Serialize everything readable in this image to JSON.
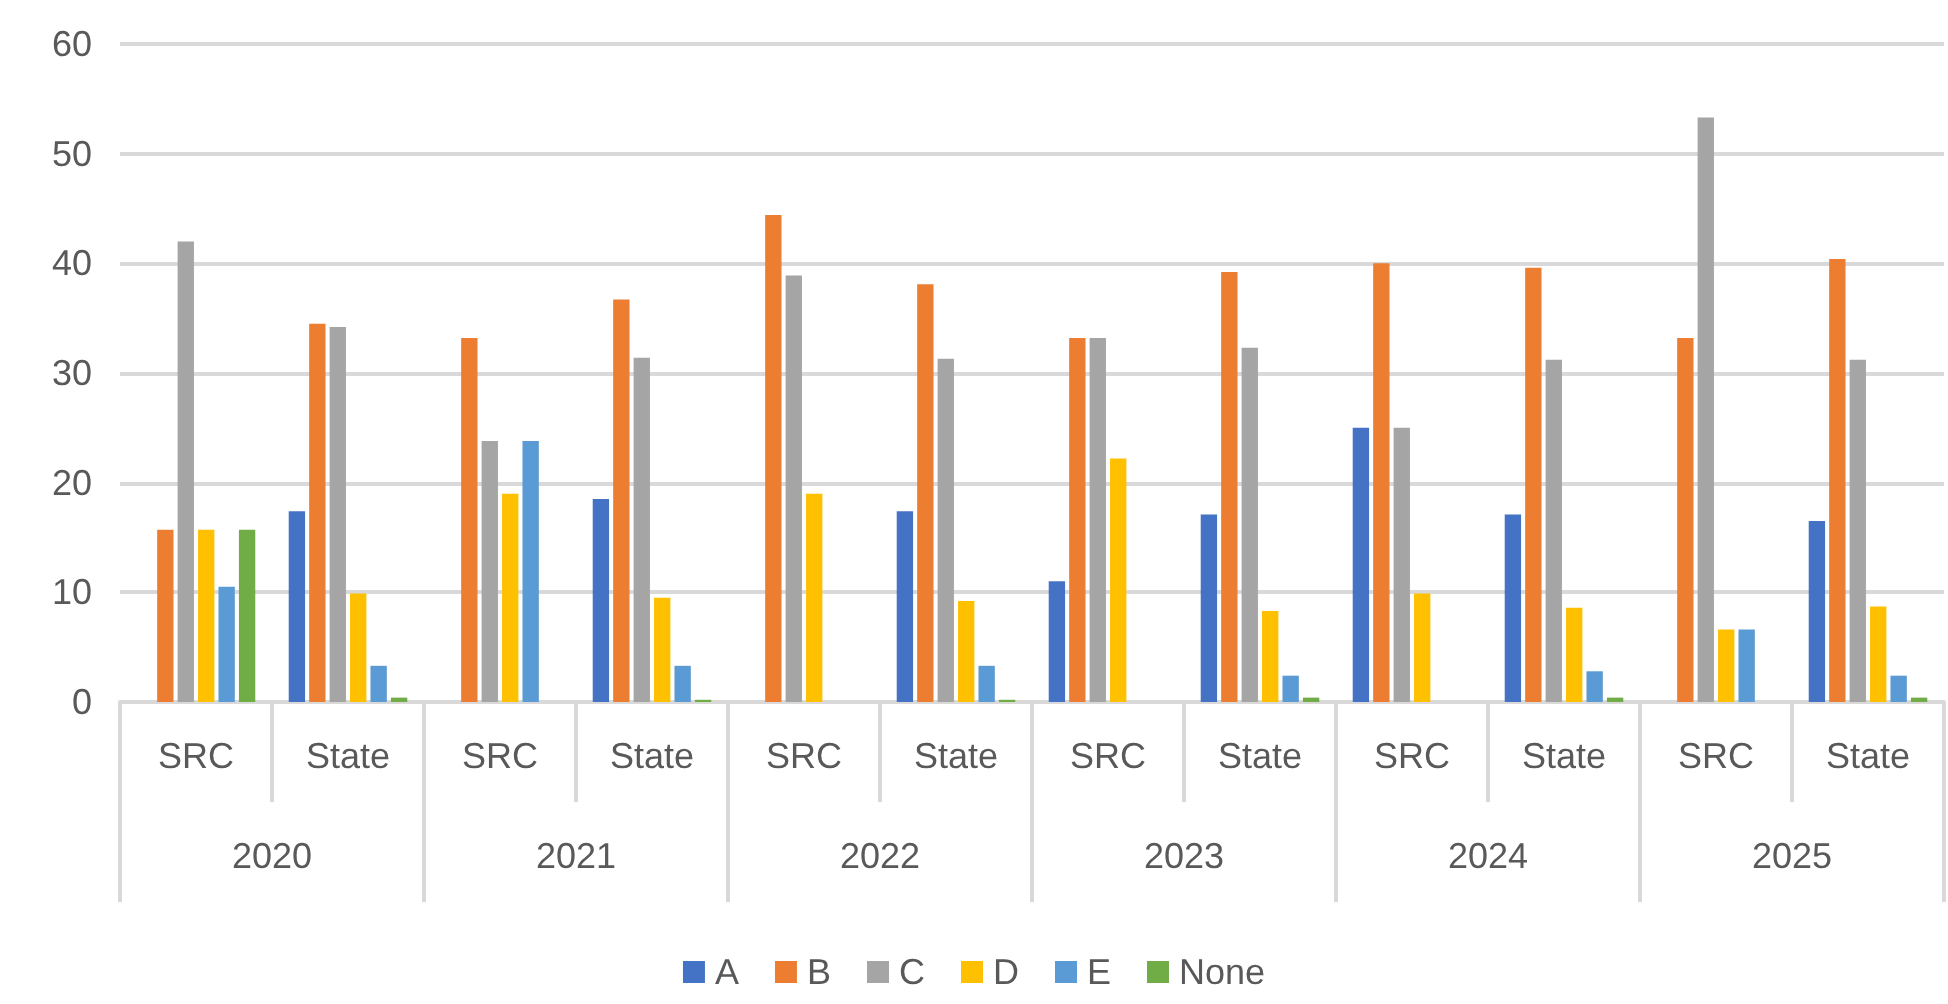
{
  "chart_data": {
    "type": "bar",
    "categories": [
      "SRC",
      "State",
      "SRC",
      "State",
      "SRC",
      "State",
      "SRC",
      "State",
      "SRC",
      "State",
      "SRC",
      "State"
    ],
    "annotations": [
      "2020",
      "2021",
      "2022",
      "2023",
      "2024",
      "2025"
    ],
    "series": [
      {
        "name": "A",
        "color": "#4472c4",
        "values": [
          0,
          17.4,
          0,
          18.5,
          0,
          17.4,
          11.0,
          17.1,
          25.0,
          17.1,
          0,
          16.5
        ]
      },
      {
        "name": "B",
        "color": "#ed7d31",
        "values": [
          15.7,
          34.5,
          33.2,
          36.7,
          44.4,
          38.1,
          33.2,
          39.2,
          40.0,
          39.6,
          33.2,
          40.4
        ]
      },
      {
        "name": "C",
        "color": "#a5a5a5",
        "values": [
          42.0,
          34.2,
          23.8,
          31.4,
          38.9,
          31.3,
          33.2,
          32.3,
          25.0,
          31.2,
          53.3,
          31.2
        ]
      },
      {
        "name": "D",
        "color": "#ffc000",
        "values": [
          15.7,
          9.9,
          19.0,
          9.5,
          19.0,
          9.2,
          22.2,
          8.3,
          9.9,
          8.6,
          6.6,
          8.7
        ]
      },
      {
        "name": "E",
        "color": "#5b9bd5",
        "values": [
          10.5,
          3.3,
          23.8,
          3.3,
          0,
          3.3,
          0,
          2.4,
          0,
          2.8,
          6.6,
          2.4
        ]
      },
      {
        "name": "None",
        "color": "#70ad47",
        "values": [
          15.7,
          0.4,
          0,
          0.2,
          0,
          0.2,
          0,
          0.4,
          0,
          0.4,
          0,
          0.4
        ]
      }
    ],
    "ylim": [
      0,
      60
    ],
    "yticks": [
      0,
      10,
      20,
      30,
      40,
      50,
      60
    ],
    "grid": "y",
    "legend": "bottom"
  }
}
